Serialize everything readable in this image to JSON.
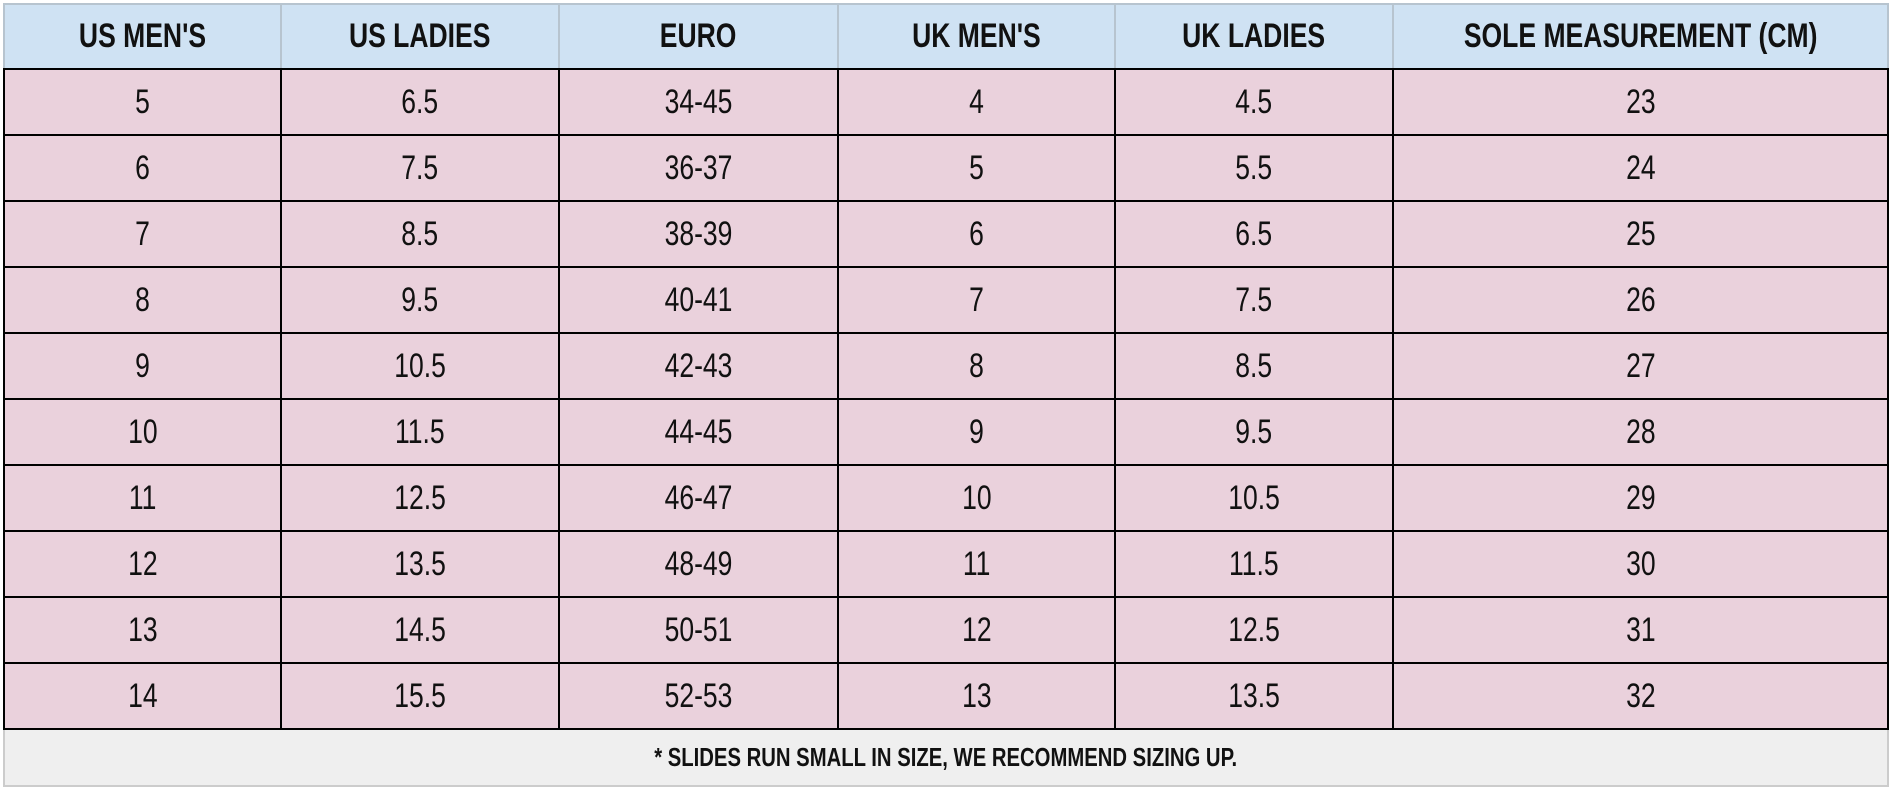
{
  "table": {
    "headers": [
      "US MEN'S",
      "US LADIES",
      "EURO",
      "UK MEN'S",
      "UK LADIES",
      "SOLE MEASUREMENT (CM)"
    ],
    "rows": [
      [
        "5",
        "6.5",
        "34-45",
        "4",
        "4.5",
        "23"
      ],
      [
        "6",
        "7.5",
        "36-37",
        "5",
        "5.5",
        "24"
      ],
      [
        "7",
        "8.5",
        "38-39",
        "6",
        "6.5",
        "25"
      ],
      [
        "8",
        "9.5",
        "40-41",
        "7",
        "7.5",
        "26"
      ],
      [
        "9",
        "10.5",
        "42-43",
        "8",
        "8.5",
        "27"
      ],
      [
        "10",
        "11.5",
        "44-45",
        "9",
        "9.5",
        "28"
      ],
      [
        "11",
        "12.5",
        "46-47",
        "10",
        "10.5",
        "29"
      ],
      [
        "12",
        "13.5",
        "48-49",
        "11",
        "11.5",
        "30"
      ],
      [
        "13",
        "14.5",
        "50-51",
        "12",
        "12.5",
        "31"
      ],
      [
        "14",
        "15.5",
        "52-53",
        "13",
        "13.5",
        "32"
      ]
    ],
    "footnote": "* SLIDES RUN SMALL IN SIZE, WE RECOMMEND SIZING UP."
  }
}
